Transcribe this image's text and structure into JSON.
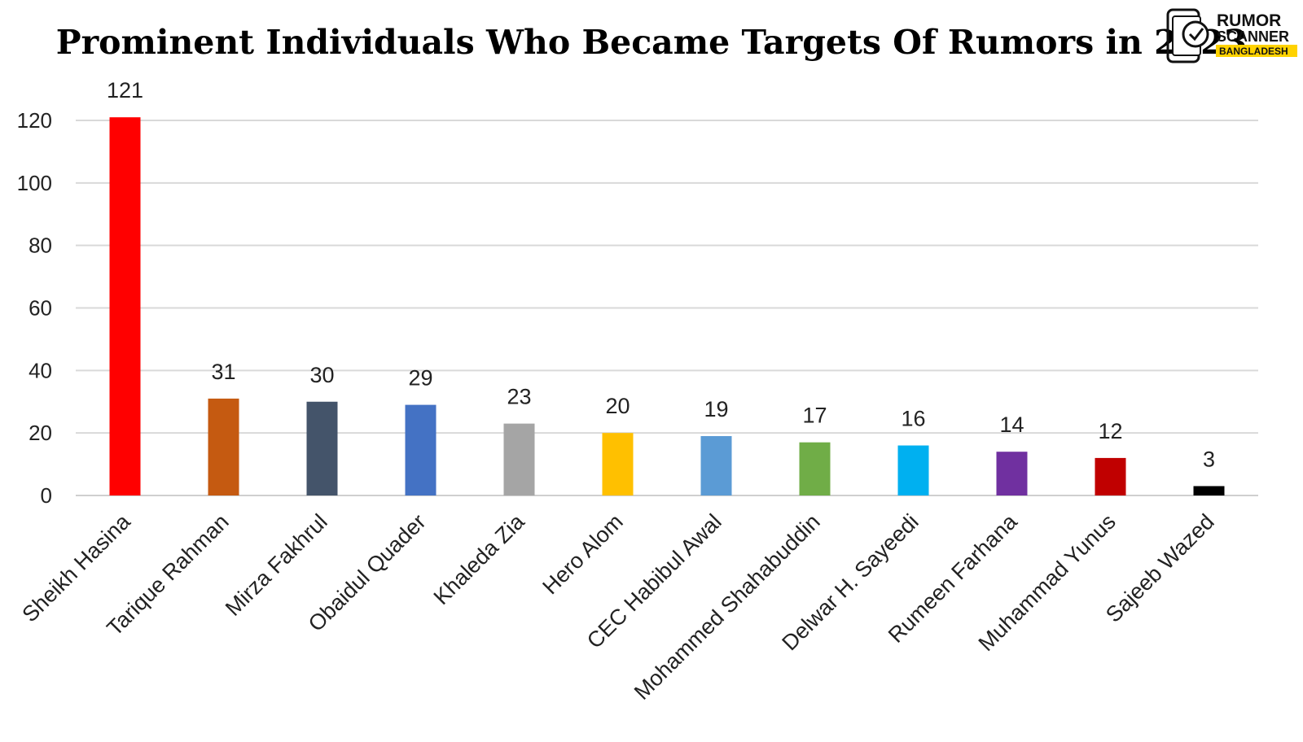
{
  "chart_data": {
    "type": "bar",
    "title": "Prominent Individuals Who Became Targets Of Rumors in 2023",
    "xlabel": "",
    "ylabel": "",
    "ylim": [
      0,
      120
    ],
    "yticks": [
      0,
      20,
      40,
      60,
      80,
      100,
      120
    ],
    "grid": true,
    "categories": [
      "Sheikh Hasina",
      "Tarique Rahman",
      "Mirza Fakhrul",
      "Obaidul Quader",
      "Khaleda Zia",
      "Hero Alom",
      "CEC Habibul Awal",
      "Mohammed Shahabuddin",
      "Delwar H. Sayeedi",
      "Rumeen Farhana",
      "Muhammad Yunus",
      "Sajeeb Wazed"
    ],
    "values": [
      121,
      31,
      30,
      29,
      23,
      20,
      19,
      17,
      16,
      14,
      12,
      3
    ],
    "colors": [
      "#ff0000",
      "#c55a11",
      "#44546a",
      "#4472c4",
      "#a5a5a5",
      "#ffc000",
      "#5b9bd5",
      "#70ad47",
      "#00b0f0",
      "#7030a0",
      "#c00000",
      "#000000"
    ]
  },
  "logo": {
    "line1": "RUMOR",
    "line2": "SCANNER",
    "line3": "BANGLADESH",
    "accent": "#ffd200",
    "icon": "phone-check-icon"
  }
}
